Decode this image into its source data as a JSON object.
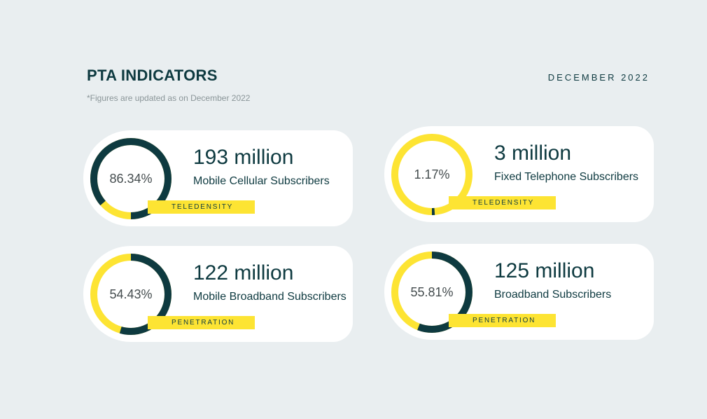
{
  "header": {
    "title": "PTA INDICATORS",
    "date": "DECEMBER 2022",
    "note": "*Figures are updated as on December 2022"
  },
  "colors": {
    "dark": "#0e3a40",
    "accent": "#fde433",
    "background": "#e9eef0"
  },
  "indicators": [
    {
      "percent": "86.34%",
      "percent_value": 86.34,
      "value": "193 million",
      "label": "Mobile Cellular Subscribers",
      "tag": "TELEDENSITY"
    },
    {
      "percent": "1.17%",
      "percent_value": 1.17,
      "value": "3 million",
      "label": "Fixed Telephone Subscribers",
      "tag": "TELEDENSITY"
    },
    {
      "percent": "54.43%",
      "percent_value": 54.43,
      "value": "122 million",
      "label": "Mobile Broadband Subscribers",
      "tag": "PENETRATION"
    },
    {
      "percent": "55.81%",
      "percent_value": 55.81,
      "value": "125 million",
      "label": "Broadband Subscribers",
      "tag": "PENETRATION"
    }
  ]
}
